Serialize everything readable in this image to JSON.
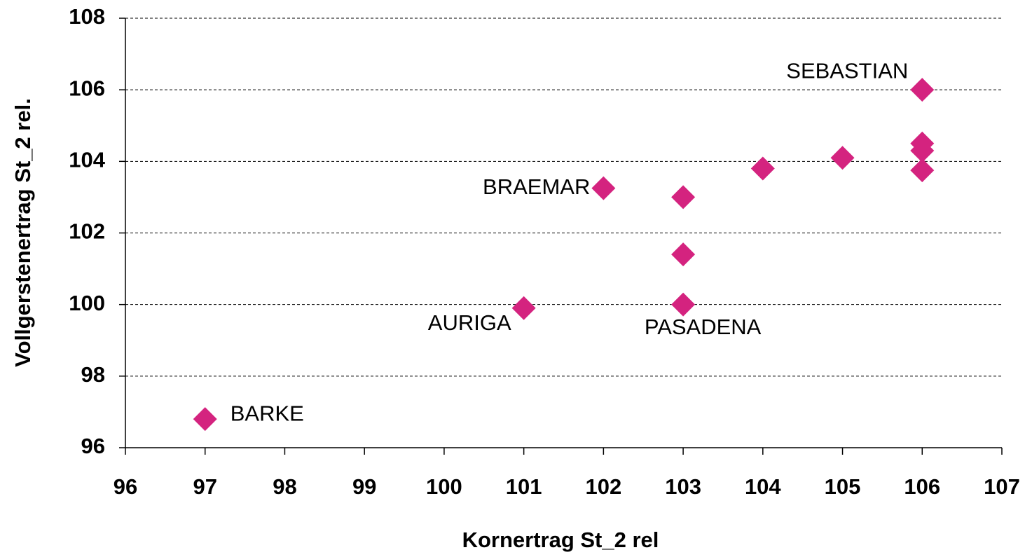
{
  "chart_data": {
    "type": "scatter",
    "x_label": "Kornertrag St_2 rel",
    "y_label": "Vollgerstenertrag St_2 rel.",
    "series": [
      {
        "color": "#d4237f",
        "x": [
          97,
          101,
          102,
          103,
          103,
          103,
          104,
          105,
          106,
          106,
          106,
          106
        ],
        "values": [
          96.8,
          99.9,
          103.25,
          103.0,
          101.4,
          100.0,
          103.8,
          104.1,
          106.0,
          104.5,
          104.3,
          103.75
        ],
        "point_labels": [
          "BARKE",
          "AURIGA",
          "BRAEMAR",
          null,
          null,
          "PASADENA",
          null,
          null,
          "SEBASTIAN",
          null,
          null,
          null
        ]
      }
    ],
    "xlim": [
      96,
      107
    ],
    "xticks": [
      96,
      97,
      98,
      99,
      100,
      101,
      102,
      103,
      104,
      105,
      106,
      107
    ],
    "ylim": [
      96,
      108
    ],
    "yticks": [
      96,
      98,
      100,
      102,
      104,
      106,
      108
    ],
    "grid": true
  }
}
